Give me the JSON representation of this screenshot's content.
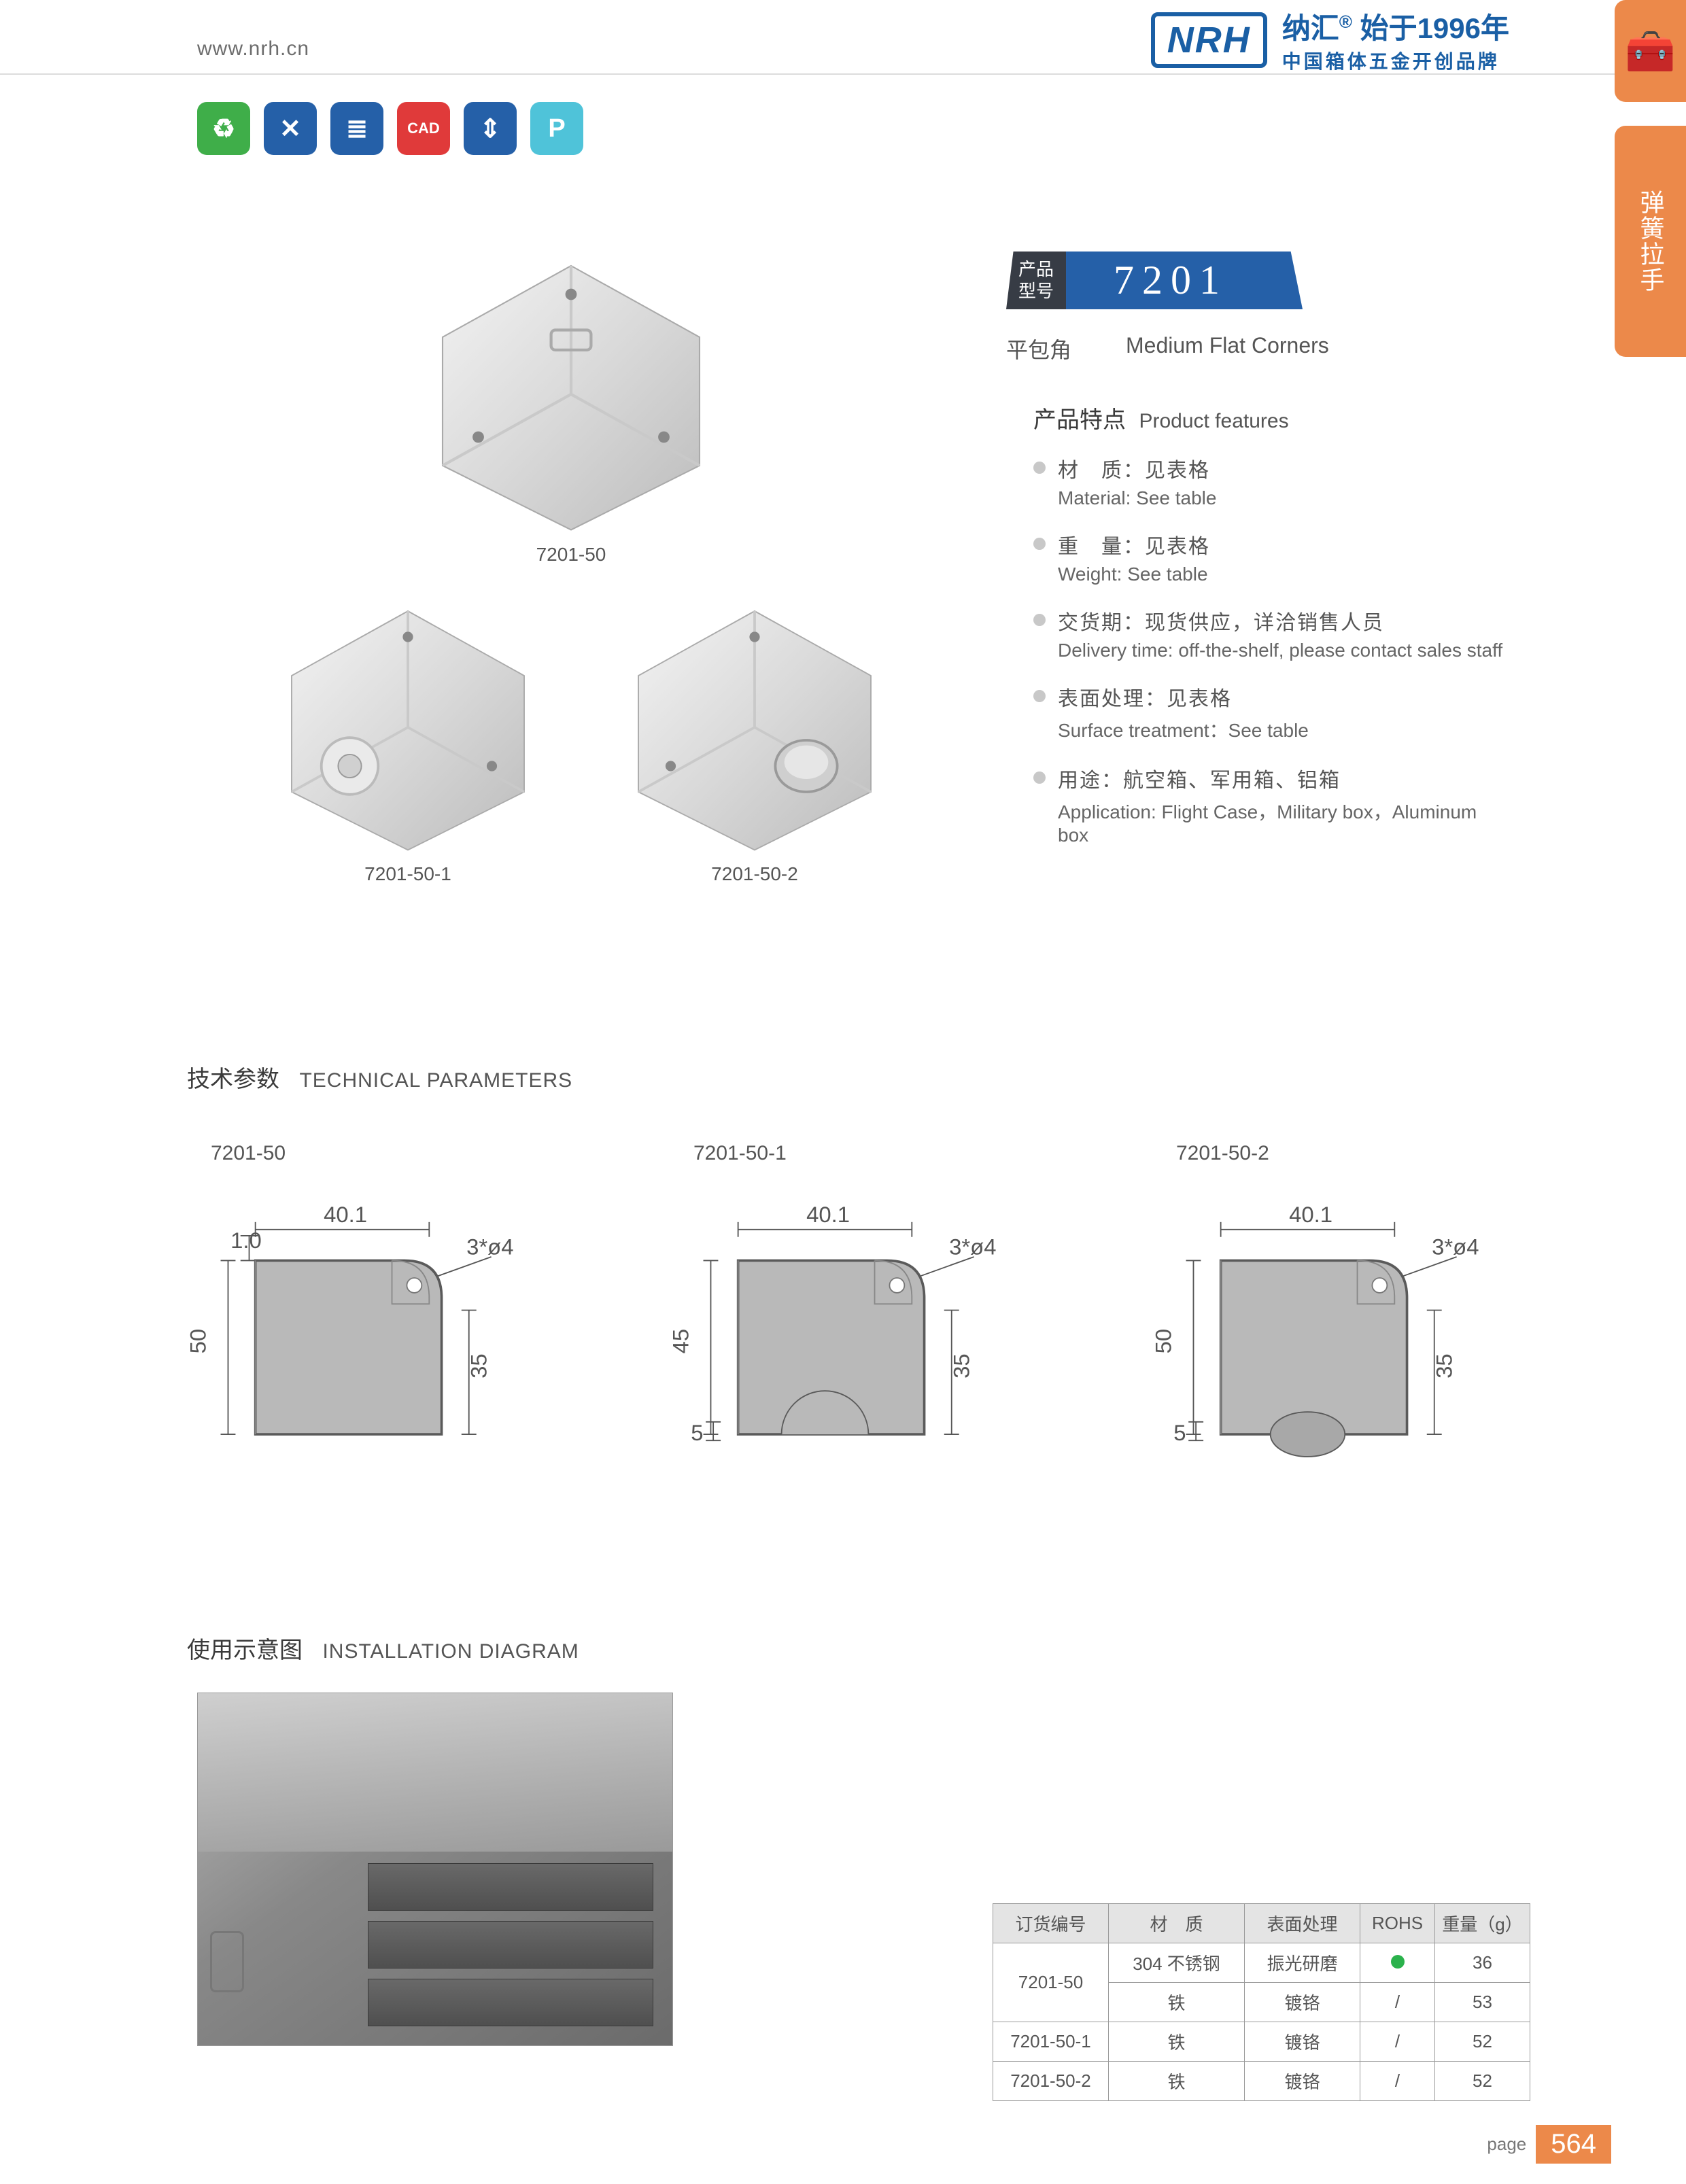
{
  "header": {
    "url": "www.nrh.cn",
    "logo_abbr": "NRH",
    "logo_cn_1a": "纳汇",
    "logo_reg": "®",
    "logo_cn_1b": "始于1996年",
    "logo_cn_2": "中国箱体五金开创品牌"
  },
  "side": {
    "icon": "🧰",
    "text": "弹簧拉手"
  },
  "icon_row": [
    {
      "bg": "#3fae49",
      "glyph": "♻"
    },
    {
      "bg": "#2560a8",
      "glyph": "✕"
    },
    {
      "bg": "#2560a8",
      "glyph": "≣"
    },
    {
      "bg": "#e03a3a",
      "glyph": "CAD"
    },
    {
      "bg": "#2560a8",
      "glyph": "⇕"
    },
    {
      "bg": "#4fc3d9",
      "glyph": "P"
    }
  ],
  "products": {
    "p1": {
      "label": "7201-50"
    },
    "p2": {
      "label": "7201-50-1"
    },
    "p3": {
      "label": "7201-50-2"
    }
  },
  "model": {
    "label_l1": "产品",
    "label_l2": "型号",
    "number": "7201",
    "sub_cn": "平包角",
    "sub_en": "Medium Flat Corners",
    "badge_bg": "#2560a8",
    "label_bg": "#373c45"
  },
  "features": {
    "title_cn": "产品特点",
    "title_en": "Product features",
    "items": [
      {
        "cn": "材　质：见表格",
        "en": "Material: See table"
      },
      {
        "cn": "重　量：见表格",
        "en": "Weight: See table"
      },
      {
        "cn": "交货期：现货供应，详洽销售人员",
        "en": "Delivery time: off-the-shelf, please contact sales staff"
      },
      {
        "cn": "表面处理：见表格",
        "en": "Surface treatment：See table"
      },
      {
        "cn": "用途：航空箱、军用箱、铝箱",
        "en": "Application: Flight Case，Military box，Aluminum box"
      }
    ]
  },
  "sections": {
    "tech_cn": "技术参数",
    "tech_en": "TECHNICAL PARAMETERS",
    "install_cn": "使用示意图",
    "install_en": "INSTALLATION DIAGRAM"
  },
  "tech": {
    "items": [
      {
        "label": "7201-50",
        "width": "40.1",
        "thick": "1.0",
        "hole": "3*ø4",
        "h_left": "50",
        "h_right": "35",
        "bottom_extra": "",
        "show_bump": false
      },
      {
        "label": "7201-50-1",
        "width": "40.1",
        "thick": "",
        "hole": "3*ø4",
        "h_left": "45",
        "h_right": "35",
        "bottom_extra": "5",
        "show_bump": true,
        "bump_type": "arc"
      },
      {
        "label": "7201-50-2",
        "width": "40.1",
        "thick": "",
        "hole": "3*ø4",
        "h_left": "50",
        "h_right": "35",
        "bottom_extra": "5",
        "show_bump": true,
        "bump_type": "ball"
      }
    ],
    "fill": "#b9b9b9",
    "stroke": "#5a5a5a"
  },
  "spec_table": {
    "headers": [
      "订货编号",
      "材　质",
      "表面处理",
      "ROHS",
      "重量（g）"
    ],
    "rows": [
      {
        "code": "7201-50",
        "material": "304 不锈钢",
        "surface": "振光研磨",
        "rohs": "dot",
        "weight": "36",
        "rowspan": 2
      },
      {
        "code": "",
        "material": "铁",
        "surface": "镀铬",
        "rohs": "/",
        "weight": "53"
      },
      {
        "code": "7201-50-1",
        "material": "铁",
        "surface": "镀铬",
        "rohs": "/",
        "weight": "52"
      },
      {
        "code": "7201-50-2",
        "material": "铁",
        "surface": "镀铬",
        "rohs": "/",
        "weight": "52"
      }
    ],
    "header_bg": "#e4e4e4",
    "border": "#9a9a9a"
  },
  "footer": {
    "label": "page",
    "number": "564",
    "bg": "#ec894a"
  }
}
